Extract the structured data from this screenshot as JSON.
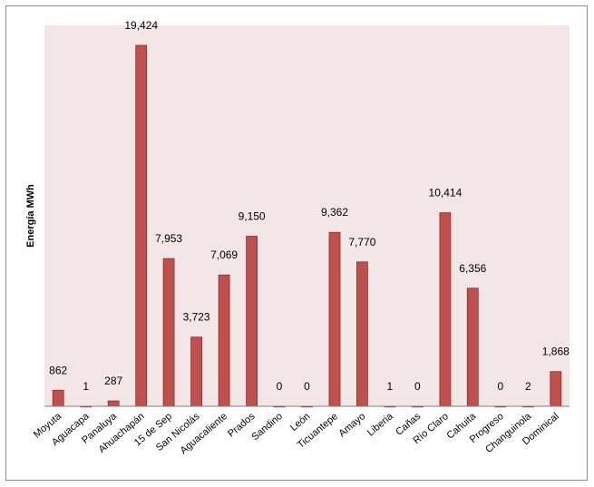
{
  "chart_data": {
    "type": "bar",
    "title": "",
    "xlabel": "",
    "ylabel": "Energía MWh",
    "ylim": [
      0,
      20500
    ],
    "grid": false,
    "legend": "none",
    "categories": [
      "Moyuta",
      "Aguacapa",
      "Panaluya",
      "Ahuachapán",
      "15 de Sep",
      "San Nicolás",
      "Aguacaliente",
      "Prados",
      "Sandino",
      "León",
      "Ticuantepe",
      "Amayo",
      "Liberia",
      "Cañas",
      "Río Claro",
      "Cahuita",
      "Progreso",
      "Changuinola",
      "Dominical"
    ],
    "values": [
      862,
      1,
      287,
      19424,
      7953,
      3723,
      7069,
      9150,
      0,
      0,
      9362,
      7770,
      1,
      0,
      10414,
      6356,
      0,
      2,
      1868
    ],
    "data_labels": [
      "862",
      "1",
      "287",
      "19,424",
      "7,953",
      "3,723",
      "7,069",
      "9,150",
      "0",
      "0",
      "9,362",
      "7,770",
      "1",
      "0",
      "10,414",
      "6,356",
      "0",
      "2",
      "1,868"
    ],
    "colors": {
      "bar_fill": "#c0504d",
      "bar_stroke": "#8c2e2b",
      "plot_background": "#f2e6e6",
      "axis": "#808080"
    }
  }
}
